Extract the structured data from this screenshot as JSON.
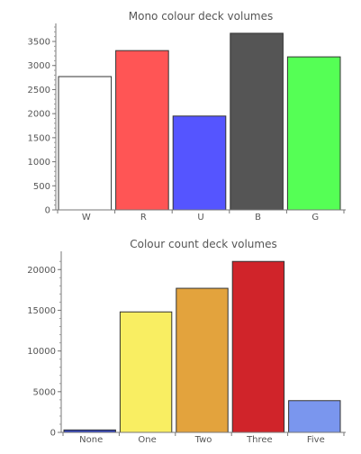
{
  "chart_data": [
    {
      "type": "bar",
      "title": "Mono colour deck volumes",
      "categories": [
        "W",
        "R",
        "U",
        "B",
        "G"
      ],
      "values": [
        2770,
        3310,
        1950,
        3670,
        3180
      ],
      "colors": [
        "#ffffff",
        "#ff5555",
        "#5555ff",
        "#555555",
        "#55ff55"
      ],
      "ylim": [
        0,
        3800
      ],
      "yticks": [
        0,
        500,
        1000,
        1500,
        2000,
        2500,
        3000,
        3500
      ],
      "xlabel": "",
      "ylabel": ""
    },
    {
      "type": "bar",
      "title": "Colour count deck volumes",
      "categories": [
        "None",
        "One",
        "Two",
        "Three",
        "Five"
      ],
      "values": [
        300,
        14800,
        17700,
        21000,
        3900
      ],
      "colors": [
        "#3344bb",
        "#f9ee62",
        "#e3a33d",
        "#d0242a",
        "#7a96ee"
      ],
      "ylim": [
        0,
        21800
      ],
      "yticks": [
        0,
        5000,
        10000,
        15000,
        20000
      ],
      "xlabel": "",
      "ylabel": ""
    }
  ]
}
